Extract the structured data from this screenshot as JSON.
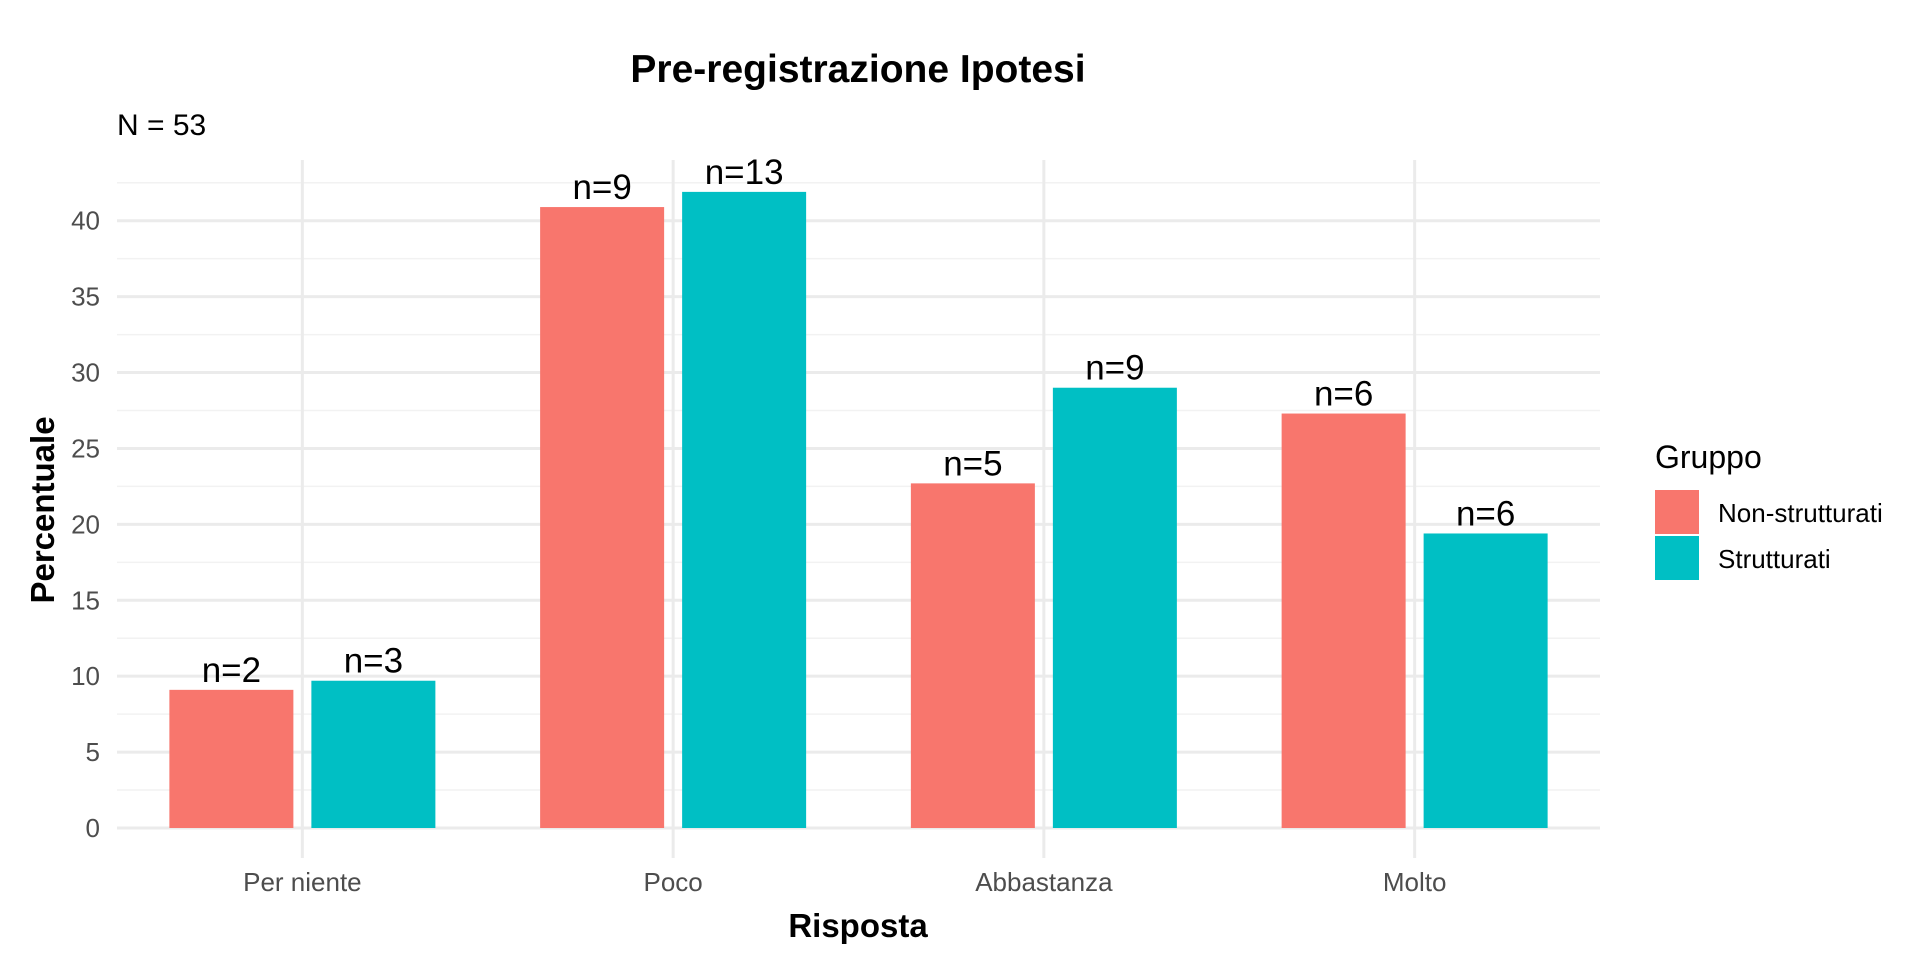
{
  "chart_data": {
    "type": "bar",
    "title": "Pre-registrazione Ipotesi",
    "subtitle": "N = 53",
    "xlabel": "Risposta",
    "ylabel": "Percentuale",
    "categories": [
      "Per niente",
      "Poco",
      "Abbastanza",
      "Molto"
    ],
    "ylim": [
      0,
      44
    ],
    "yticks": [
      0,
      5,
      10,
      15,
      20,
      25,
      30,
      35,
      40
    ],
    "yticks_text": [
      "0",
      "5",
      "10",
      "15",
      "20",
      "25",
      "30",
      "35",
      "40"
    ],
    "grid": true,
    "legend": {
      "title": "Gruppo",
      "position": "right"
    },
    "series": [
      {
        "name": "Non-strutturati",
        "color": "#F8766D",
        "values": [
          9.1,
          40.9,
          22.7,
          27.3
        ],
        "labels": [
          "n=2",
          "n=9",
          "n=5",
          "n=6"
        ]
      },
      {
        "name": "Strutturati",
        "color": "#00BFC4",
        "values": [
          9.7,
          41.9,
          29.0,
          19.4
        ],
        "labels": [
          "n=3",
          "n=13",
          "n=9",
          "n=6"
        ]
      }
    ]
  }
}
